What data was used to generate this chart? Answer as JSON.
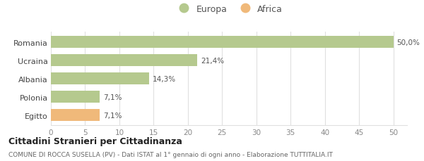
{
  "categories": [
    "Romania",
    "Ucraina",
    "Albania",
    "Polonia",
    "Egitto"
  ],
  "values": [
    50.0,
    21.4,
    14.3,
    7.1,
    7.1
  ],
  "labels": [
    "50,0%",
    "21,4%",
    "14,3%",
    "7,1%",
    "7,1%"
  ],
  "colors": [
    "#b5c98e",
    "#b5c98e",
    "#b5c98e",
    "#b5c98e",
    "#f0b97a"
  ],
  "legend_entries": [
    {
      "label": "Europa",
      "color": "#b5c98e"
    },
    {
      "label": "Africa",
      "color": "#f0b97a"
    }
  ],
  "xlim": [
    0,
    52
  ],
  "xticks": [
    0,
    5,
    10,
    15,
    20,
    25,
    30,
    35,
    40,
    45,
    50
  ],
  "title_bold": "Cittadini Stranieri per Cittadinanza",
  "subtitle": "COMUNE DI ROCCA SUSELLA (PV) - Dati ISTAT al 1° gennaio di ogni anno - Elaborazione TUTTITALIA.IT",
  "background_color": "#ffffff",
  "bar_edge_color": "none",
  "grid_color": "#e0e0e0",
  "label_color": "#555555",
  "tick_color": "#888888"
}
